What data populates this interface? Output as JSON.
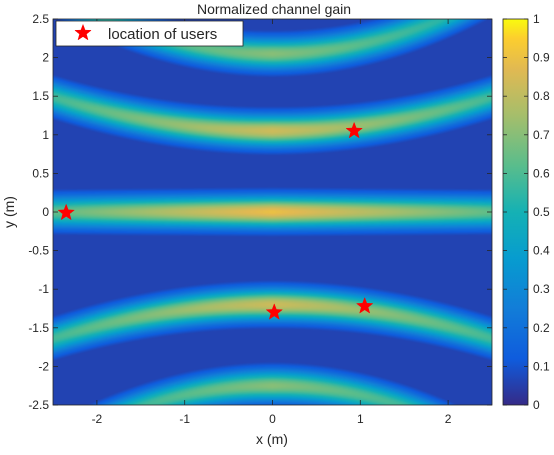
{
  "chart_data": {
    "type": "heatmap",
    "title": "Normalized channel gain",
    "xlabel": "x (m)",
    "ylabel": "y (m)",
    "xlim": [
      -2.5,
      2.5
    ],
    "ylim": [
      -2.5,
      2.5
    ],
    "xticks": [
      -2,
      -1,
      0,
      1,
      2
    ],
    "yticks": [
      -2.5,
      -2,
      -1.5,
      -1,
      -0.5,
      0,
      0.5,
      1,
      1.5,
      2,
      2.5
    ],
    "xtick_labels": [
      "-2",
      "-1",
      "0",
      "1",
      "2"
    ],
    "ytick_labels": [
      "-2.5",
      "-2",
      "-1.5",
      "-1",
      "-0.5",
      "0",
      "0.5",
      "1",
      "1.5",
      "2",
      "2.5"
    ],
    "colorbar": {
      "colormap": "parula",
      "range": [
        0,
        1
      ],
      "ticks": [
        0,
        0.1,
        0.2,
        0.3,
        0.4,
        0.5,
        0.6,
        0.7,
        0.8,
        0.9,
        1
      ],
      "tick_labels": [
        "0",
        "0.1",
        "0.2",
        "0.3",
        "0.4",
        "0.5",
        "0.6",
        "0.7",
        "0.8",
        "0.9",
        "1"
      ]
    },
    "heatmap_bands": [
      {
        "y_center": 0.0,
        "peak": 0.9,
        "curvature": 0.0
      },
      {
        "y_center": 1.05,
        "peak": 0.83,
        "curvature": 0.07
      },
      {
        "y_center": -1.2,
        "peak": 0.83,
        "curvature": -0.07
      },
      {
        "y_center": 2.05,
        "peak": 0.7,
        "curvature": 0.12
      },
      {
        "y_center": -2.25,
        "peak": 0.7,
        "curvature": -0.12
      }
    ],
    "series": [
      {
        "name": "location of users",
        "marker": "star",
        "color": "#ff0000",
        "points": [
          {
            "x": 0.93,
            "y": 1.05
          },
          {
            "x": -2.35,
            "y": -0.01
          },
          {
            "x": 0.02,
            "y": -1.3
          },
          {
            "x": 1.05,
            "y": -1.22
          }
        ]
      }
    ],
    "legend": {
      "position": "top-left"
    },
    "grid": false
  }
}
